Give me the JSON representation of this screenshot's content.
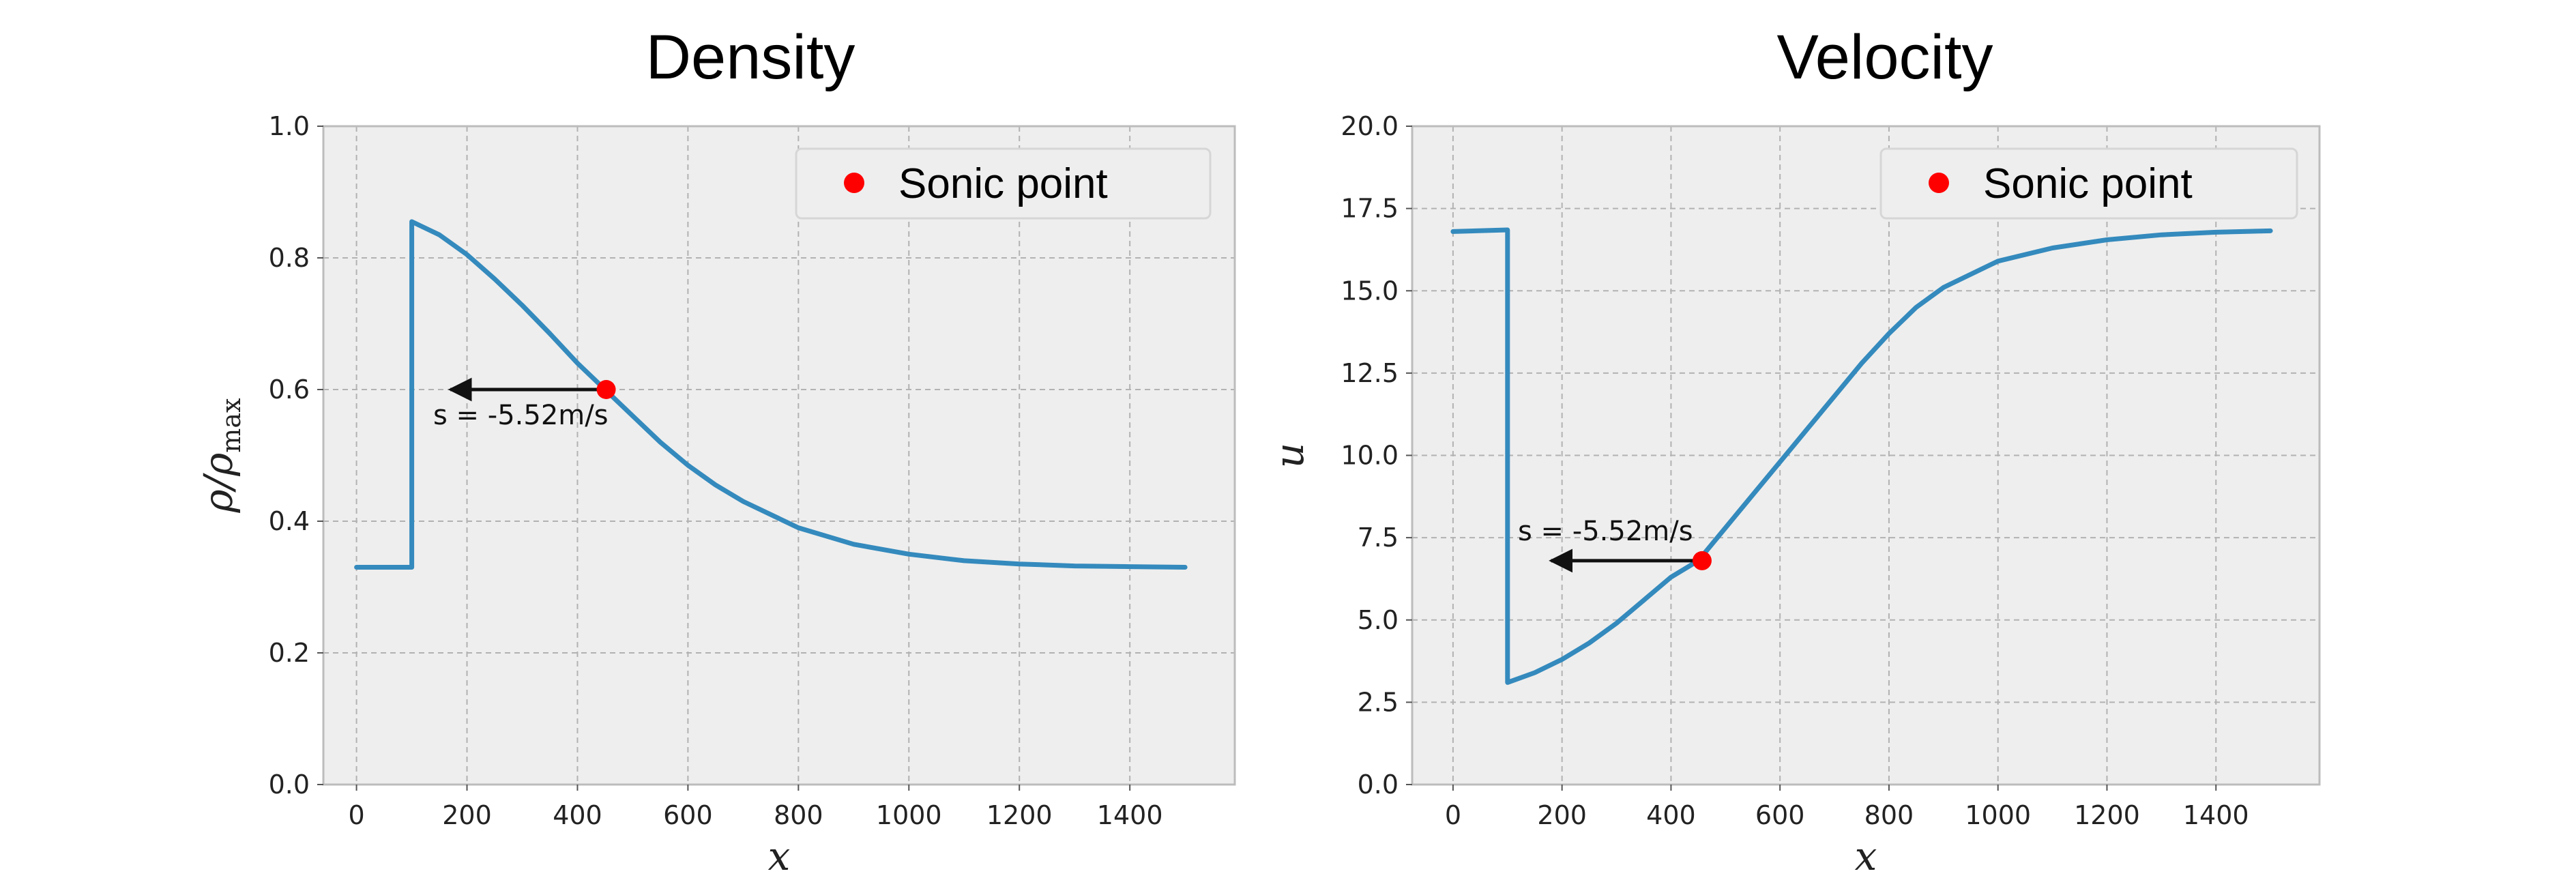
{
  "chart_data": [
    {
      "type": "line",
      "title": "Density",
      "xlabel": "x",
      "ylabel": "ρ/ρmax",
      "xlim": [
        -60,
        1590
      ],
      "ylim": [
        0.0,
        1.0
      ],
      "xticks": [
        0,
        200,
        400,
        600,
        800,
        1000,
        1200,
        1400
      ],
      "yticks": [
        0.0,
        0.2,
        0.4,
        0.6,
        0.8,
        1.0
      ],
      "xtick_labels": [
        "0",
        "200",
        "400",
        "600",
        "800",
        "1000",
        "1200",
        "1400"
      ],
      "ytick_labels": [
        "0.0",
        "0.2",
        "0.4",
        "0.6",
        "0.8",
        "1.0"
      ],
      "grid": true,
      "legend": {
        "placement": "top-right",
        "entries": [
          "Sonic point"
        ]
      },
      "series": [
        {
          "color": "#348abd",
          "x": [
            0,
            100,
            100,
            150,
            200,
            250,
            300,
            350,
            400,
            450,
            500,
            550,
            600,
            650,
            700,
            800,
            900,
            1000,
            1100,
            1200,
            1300,
            1400,
            1500
          ],
          "y": [
            0.33,
            0.33,
            0.855,
            0.835,
            0.805,
            0.768,
            0.728,
            0.685,
            0.64,
            0.6,
            0.56,
            0.52,
            0.485,
            0.455,
            0.43,
            0.39,
            0.365,
            0.35,
            0.34,
            0.335,
            0.332,
            0.331,
            0.33
          ]
        }
      ],
      "sonic_point": {
        "label": "Sonic point",
        "x": 452,
        "y": 0.6,
        "color": "#ff0000"
      },
      "annotation": {
        "text": "s = -5.52m/s",
        "arrow_from": [
          452,
          0.6
        ],
        "arrow_to": [
          170,
          0.6
        ]
      }
    },
    {
      "type": "line",
      "title": "Velocity",
      "xlabel": "x",
      "ylabel": "u",
      "xlim": [
        -75,
        1590
      ],
      "ylim": [
        0.0,
        20.0
      ],
      "xticks": [
        0,
        200,
        400,
        600,
        800,
        1000,
        1200,
        1400
      ],
      "yticks": [
        0.0,
        2.5,
        5.0,
        7.5,
        10.0,
        12.5,
        15.0,
        17.5,
        20.0
      ],
      "xtick_labels": [
        "0",
        "200",
        "400",
        "600",
        "800",
        "1000",
        "1200",
        "1400"
      ],
      "ytick_labels": [
        "0.0",
        "2.5",
        "5.0",
        "7.5",
        "10.0",
        "12.5",
        "15.0",
        "17.5",
        "20.0"
      ],
      "grid": true,
      "legend": {
        "placement": "top-right",
        "entries": [
          "Sonic point"
        ]
      },
      "series": [
        {
          "color": "#348abd",
          "x": [
            0,
            100,
            100,
            150,
            200,
            250,
            300,
            350,
            400,
            450,
            500,
            550,
            600,
            650,
            700,
            750,
            800,
            850,
            900,
            1000,
            1100,
            1200,
            1300,
            1400,
            1500
          ],
          "y": [
            16.8,
            16.85,
            3.1,
            3.4,
            3.8,
            4.3,
            4.9,
            5.6,
            6.3,
            6.8,
            7.8,
            8.8,
            9.8,
            10.8,
            11.8,
            12.8,
            13.7,
            14.5,
            15.1,
            15.9,
            16.3,
            16.55,
            16.7,
            16.78,
            16.82
          ]
        }
      ],
      "sonic_point": {
        "label": "Sonic point",
        "x": 457,
        "y": 6.8,
        "color": "#ff0000"
      },
      "annotation": {
        "text": "s = -5.52m/s",
        "arrow_from": [
          457,
          6.8
        ],
        "arrow_to": [
          180,
          6.8
        ]
      }
    }
  ]
}
